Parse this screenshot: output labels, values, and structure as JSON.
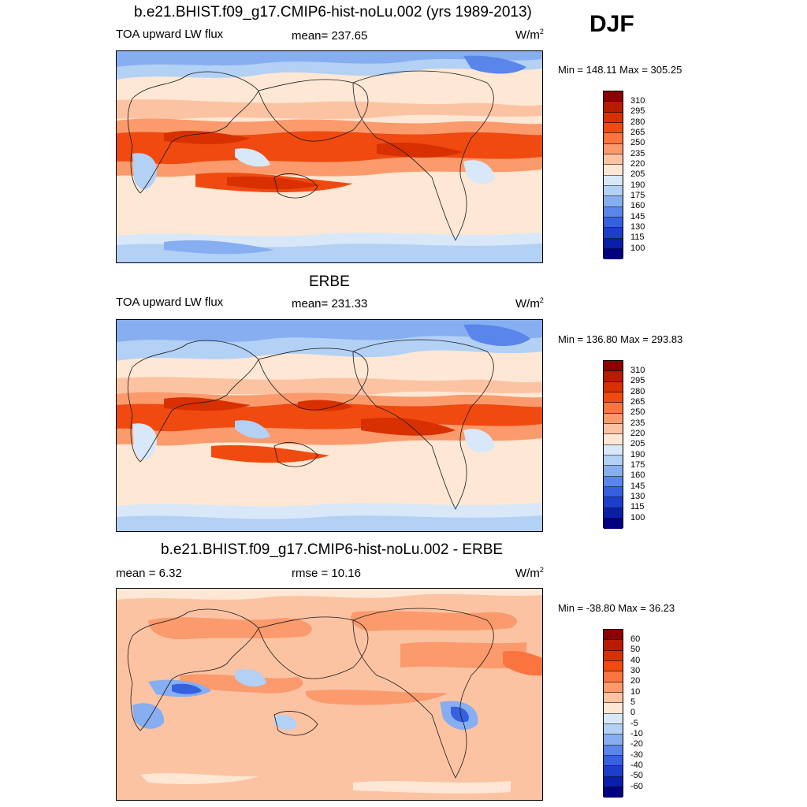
{
  "season": "DJF",
  "panels": [
    {
      "id": "model",
      "title": "b.e21.BHIST.f09_g17.CMIP6-hist-noLu.002 (yrs 1989-2013)",
      "left_label": "TOA upward LW flux",
      "center_label": "mean= 237.65",
      "units": "W/m",
      "units_sup": "2",
      "min_max": "Min = 148.11 Max = 305.25",
      "field_type": "absolute"
    },
    {
      "id": "obs",
      "title": "ERBE",
      "left_label": "TOA upward LW flux",
      "center_label": "mean= 231.33",
      "units": "W/m",
      "units_sup": "2",
      "min_max": "Min = 136.80 Max = 293.83",
      "field_type": "absolute"
    },
    {
      "id": "diff",
      "title": "b.e21.BHIST.f09_g17.CMIP6-hist-noLu.002 - ERBE",
      "left_label": "mean =   6.32",
      "center_label": "rmse =  10.16",
      "units": "W/m",
      "units_sup": "2",
      "min_max": "Min = -38.80 Max =  36.23",
      "field_type": "difference"
    }
  ],
  "colorbars": {
    "absolute": {
      "labels": [
        "310",
        "295",
        "280",
        "265",
        "250",
        "235",
        "220",
        "205",
        "190",
        "175",
        "160",
        "145",
        "130",
        "115",
        "100"
      ],
      "colors": [
        "#8b0000",
        "#b71c00",
        "#d83000",
        "#f04a10",
        "#f9743e",
        "#fb9a6c",
        "#fcc3a3",
        "#fee7d4",
        "#d8e8f8",
        "#b3d0f5",
        "#86aef0",
        "#5a85ea",
        "#3560e0",
        "#1c3ec9",
        "#0a1ea8",
        "#000080"
      ]
    },
    "difference": {
      "labels": [
        "60",
        "50",
        "40",
        "30",
        "20",
        "10",
        "5",
        "0",
        "-5",
        "-10",
        "-20",
        "-30",
        "-40",
        "-50",
        "-60"
      ],
      "colors": [
        "#8b0000",
        "#b71c00",
        "#d83000",
        "#f04a10",
        "#f9743e",
        "#fb9a6c",
        "#fcc3a3",
        "#fee7d4",
        "#d8e8f8",
        "#b3d0f5",
        "#86aef0",
        "#5a85ea",
        "#3560e0",
        "#1c3ec9",
        "#0a1ea8",
        "#000080"
      ]
    }
  }
}
